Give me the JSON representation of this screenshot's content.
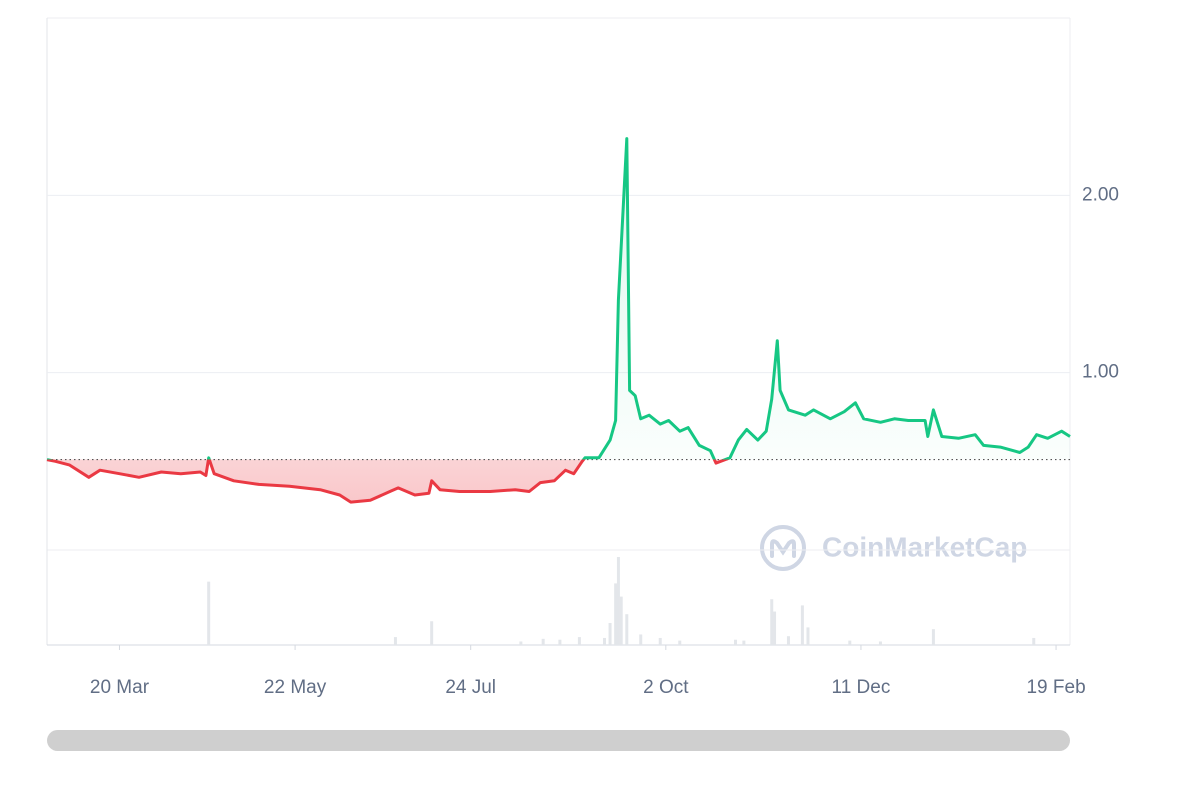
{
  "chart_data": {
    "type": "line",
    "x": [
      0,
      3,
      8,
      15,
      19,
      26,
      33,
      41,
      48,
      55,
      57,
      58,
      60,
      67,
      76,
      87,
      98,
      105,
      109,
      116,
      123,
      126,
      132,
      137,
      138,
      141,
      148,
      159,
      168,
      173,
      177,
      182,
      186,
      189,
      192,
      193,
      198,
      202,
      204,
      205,
      208,
      209,
      211,
      213,
      216,
      220,
      223,
      227,
      230,
      234,
      238,
      240,
      245,
      248,
      251,
      255,
      258,
      260,
      262,
      263,
      266,
      272,
      275,
      281,
      286,
      290,
      293,
      299,
      304,
      309,
      315,
      316,
      318,
      321,
      327,
      333,
      336,
      342,
      349,
      352,
      355,
      359,
      364,
      367
    ],
    "values": [
      0.51,
      0.5,
      0.48,
      0.41,
      0.45,
      0.43,
      0.41,
      0.44,
      0.43,
      0.44,
      0.42,
      0.52,
      0.43,
      0.39,
      0.37,
      0.36,
      0.34,
      0.31,
      0.27,
      0.28,
      0.33,
      0.35,
      0.31,
      0.32,
      0.39,
      0.34,
      0.33,
      0.33,
      0.34,
      0.33,
      0.38,
      0.39,
      0.45,
      0.43,
      0.5,
      0.52,
      0.52,
      0.62,
      0.73,
      1.41,
      2.32,
      0.9,
      0.87,
      0.74,
      0.76,
      0.71,
      0.73,
      0.67,
      0.69,
      0.59,
      0.56,
      0.49,
      0.52,
      0.62,
      0.68,
      0.62,
      0.67,
      0.85,
      1.18,
      0.9,
      0.79,
      0.76,
      0.79,
      0.74,
      0.78,
      0.83,
      0.74,
      0.72,
      0.74,
      0.73,
      0.73,
      0.64,
      0.79,
      0.64,
      0.63,
      0.65,
      0.59,
      0.58,
      0.55,
      0.58,
      0.65,
      0.63,
      0.67,
      0.64
    ],
    "baseline": 0.51,
    "up_color": "#16c784",
    "down_color": "#ea3943",
    "xlim": [
      0,
      367
    ],
    "xticks": [
      {
        "value": 26,
        "label": "20 Mar"
      },
      {
        "value": 89,
        "label": "22 May"
      },
      {
        "value": 152,
        "label": "24 Jul"
      },
      {
        "value": 222,
        "label": "2 Oct"
      },
      {
        "value": 292,
        "label": "11 Dec"
      },
      {
        "value": 362,
        "label": "19 Feb"
      }
    ],
    "ylim": [
      0,
      3
    ],
    "yticks": [
      {
        "value": 1,
        "label": "1.00"
      },
      {
        "value": 2,
        "label": "2.00"
      }
    ],
    "grid": true,
    "volume": {
      "color": "#e3e6ea",
      "x": [
        58,
        125,
        138,
        170,
        178,
        184,
        191,
        200,
        202,
        204,
        205,
        206,
        208,
        213,
        220,
        227,
        247,
        250,
        260,
        261,
        266,
        271,
        273,
        288,
        299,
        318,
        354
      ],
      "values": [
        72,
        9,
        27,
        4,
        7,
        6,
        9,
        8,
        25,
        70,
        100,
        55,
        35,
        12,
        8,
        5,
        6,
        5,
        52,
        38,
        10,
        45,
        20,
        5,
        4,
        18,
        8
      ]
    },
    "watermark": "CoinMarketCap"
  }
}
